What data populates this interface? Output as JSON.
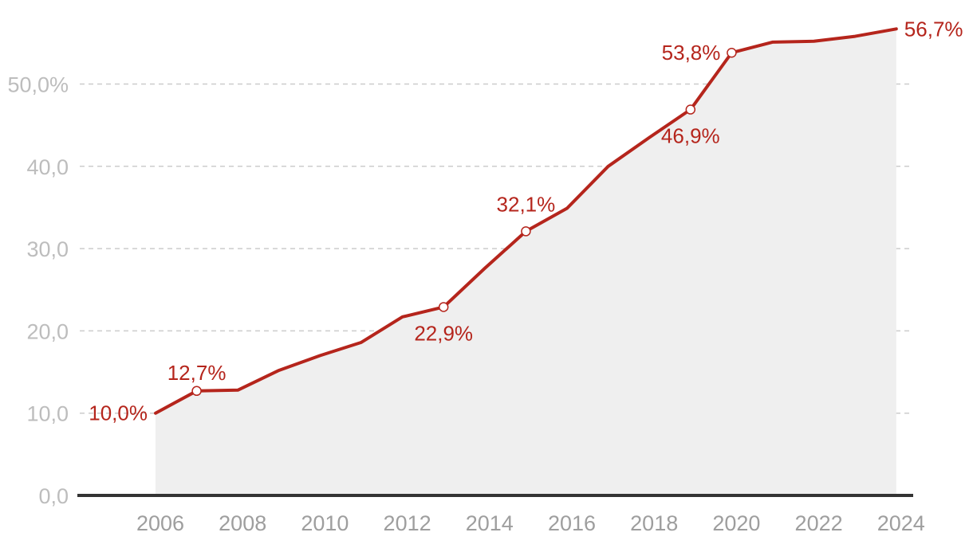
{
  "chart_data": {
    "type": "area",
    "title": "",
    "xlabel": "",
    "ylabel": "",
    "ylim": [
      0,
      60
    ],
    "grid": true,
    "x": [
      2006,
      2007,
      2008,
      2009,
      2010,
      2011,
      2012,
      2013,
      2014,
      2015,
      2016,
      2017,
      2018,
      2019,
      2020,
      2021,
      2022,
      2023,
      2024
    ],
    "series": [
      {
        "values": [
          10.0,
          12.7,
          12.8,
          15.2,
          17.0,
          18.6,
          21.7,
          22.9,
          27.6,
          32.1,
          34.9,
          40.0,
          43.5,
          46.9,
          53.8,
          55.1,
          55.2,
          55.8,
          56.7
        ]
      }
    ],
    "y_ticks": [
      {
        "value": 0,
        "label": "0,0"
      },
      {
        "value": 10,
        "label": "10,0"
      },
      {
        "value": 20,
        "label": "20,0"
      },
      {
        "value": 30,
        "label": "30,0"
      },
      {
        "value": 40,
        "label": "40,0"
      },
      {
        "value": 50,
        "label": "50,0%"
      }
    ],
    "x_ticks": [
      {
        "value": 2006,
        "label": "2006"
      },
      {
        "value": 2008,
        "label": "2008"
      },
      {
        "value": 2010,
        "label": "2010"
      },
      {
        "value": 2012,
        "label": "2012"
      },
      {
        "value": 2014,
        "label": "2014"
      },
      {
        "value": 2016,
        "label": "2016"
      },
      {
        "value": 2018,
        "label": "2018"
      },
      {
        "value": 2020,
        "label": "2020"
      },
      {
        "value": 2022,
        "label": "2022"
      },
      {
        "value": 2024,
        "label": "2024"
      }
    ],
    "annotations": [
      {
        "x": 2006,
        "y": 10.0,
        "label": "10,0%",
        "marker": false,
        "pos": "left"
      },
      {
        "x": 2007,
        "y": 12.7,
        "label": "12,7%",
        "marker": true,
        "pos": "above"
      },
      {
        "x": 2013,
        "y": 22.9,
        "label": "22,9%",
        "marker": true,
        "pos": "below"
      },
      {
        "x": 2015,
        "y": 32.1,
        "label": "32,1%",
        "marker": true,
        "pos": "above-left"
      },
      {
        "x": 2019,
        "y": 46.9,
        "label": "46,9%",
        "marker": true,
        "pos": "below"
      },
      {
        "x": 2020,
        "y": 53.8,
        "label": "53,8%",
        "marker": true,
        "pos": "left"
      },
      {
        "x": 2024,
        "y": 56.7,
        "label": "56,7%",
        "marker": false,
        "pos": "right"
      }
    ],
    "colors": {
      "line": "#b5251c",
      "area": "#efefef",
      "axis": "#333333",
      "grid": "#cccccc",
      "ytick": "#bdbdbd",
      "xtick": "#9e9e9e"
    }
  }
}
